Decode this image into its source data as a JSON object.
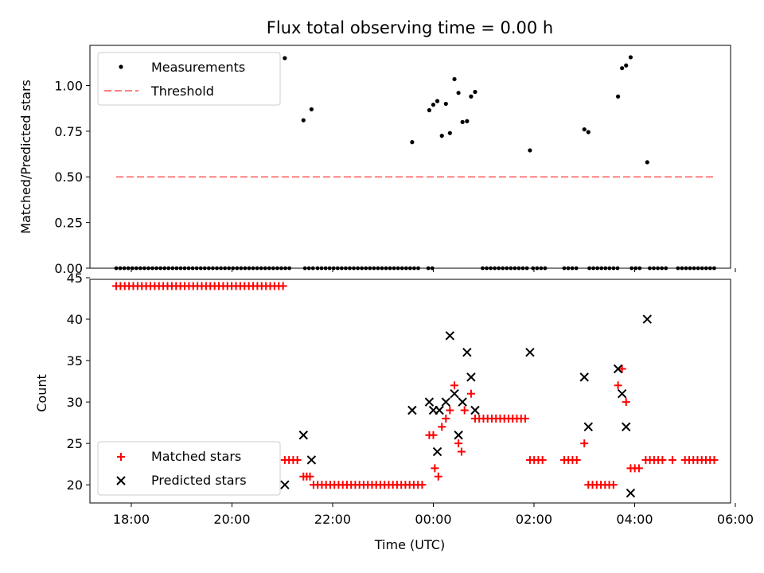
{
  "chart_data": [
    {
      "type": "scatter",
      "title": "Flux total observing time = 0.00 h",
      "xlabel": "",
      "ylabel": "Matched/Predicted stars",
      "xlim": [
        -6.3,
        5.7
      ],
      "ylim": [
        0,
        1.22
      ],
      "yticks": [
        {
          "v": 0.0,
          "label": "0.00"
        },
        {
          "v": 0.25,
          "label": "0.25"
        },
        {
          "v": 0.5,
          "label": "0.50"
        },
        {
          "v": 0.75,
          "label": "0.75"
        },
        {
          "v": 1.0,
          "label": "1.00"
        }
      ],
      "xticks": [
        -6,
        -4,
        -2,
        0,
        2,
        4,
        6
      ],
      "legend": {
        "position": "upper left",
        "entries": [
          "Measurements",
          "Threshold"
        ]
      },
      "series": [
        {
          "name": "Measurements",
          "color": "#000000",
          "marker": "dot",
          "zero_x": [
            -6.3,
            -6.22,
            -6.14,
            -6.06,
            -5.98,
            -5.9,
            -5.82,
            -5.74,
            -5.66,
            -5.58,
            -5.5,
            -5.42,
            -5.34,
            -5.26,
            -5.18,
            -5.1,
            -5.02,
            -4.94,
            -4.86,
            -4.78,
            -4.7,
            -4.62,
            -4.54,
            -4.46,
            -4.38,
            -4.3,
            -4.22,
            -4.14,
            -4.06,
            -3.98,
            -3.9,
            -3.82,
            -3.74,
            -3.66,
            -3.58,
            -3.5,
            -3.42,
            -3.34,
            -3.26,
            -3.18,
            -3.1,
            -3.02,
            -2.94,
            -2.86,
            -2.55,
            -2.47,
            -2.39,
            -2.3,
            -2.22,
            -2.14,
            -2.06,
            -1.98,
            -1.9,
            -1.82,
            -1.74,
            -1.66,
            -1.58,
            -1.5,
            -1.42,
            -1.34,
            -1.26,
            -1.18,
            -1.1,
            -1.02,
            -0.94,
            -0.86,
            -0.78,
            -0.7,
            -0.62,
            -0.54,
            -0.46,
            -0.38,
            -0.3,
            -0.1,
            -0.02,
            0.98,
            1.06,
            1.14,
            1.22,
            1.3,
            1.38,
            1.46,
            1.54,
            1.62,
            1.7,
            1.78,
            1.86,
            1.98,
            2.06,
            2.14,
            2.22,
            2.6,
            2.68,
            2.76,
            2.84,
            3.1,
            3.18,
            3.26,
            3.34,
            3.42,
            3.5,
            3.58,
            3.66,
            3.94,
            4.02,
            4.1,
            4.3,
            4.38,
            4.46,
            4.54,
            4.62,
            4.86,
            4.94,
            5.02,
            5.1,
            5.18,
            5.26,
            5.34,
            5.42,
            5.5,
            5.58
          ],
          "points": [
            {
              "x": -2.95,
              "y": 1.15
            },
            {
              "x": -2.58,
              "y": 0.81
            },
            {
              "x": -2.42,
              "y": 0.87
            },
            {
              "x": -0.42,
              "y": 0.69
            },
            {
              "x": -0.08,
              "y": 0.865
            },
            {
              "x": 0.0,
              "y": 0.895
            },
            {
              "x": 0.08,
              "y": 0.915
            },
            {
              "x": 0.17,
              "y": 0.725
            },
            {
              "x": 0.25,
              "y": 0.9
            },
            {
              "x": 0.33,
              "y": 0.74
            },
            {
              "x": 0.42,
              "y": 1.035
            },
            {
              "x": 0.5,
              "y": 0.96
            },
            {
              "x": 0.58,
              "y": 0.8
            },
            {
              "x": 0.67,
              "y": 0.805
            },
            {
              "x": 0.75,
              "y": 0.94
            },
            {
              "x": 0.83,
              "y": 0.965
            },
            {
              "x": 1.92,
              "y": 0.645
            },
            {
              "x": 3.0,
              "y": 0.76
            },
            {
              "x": 3.08,
              "y": 0.745
            },
            {
              "x": 3.67,
              "y": 0.94
            },
            {
              "x": 3.75,
              "y": 1.095
            },
            {
              "x": 3.83,
              "y": 1.11
            },
            {
              "x": 3.92,
              "y": 1.155
            },
            {
              "x": 4.25,
              "y": 0.58
            }
          ]
        },
        {
          "name": "Threshold",
          "color": "#ff8080",
          "style": "dashed",
          "x": [
            -6.3,
            5.6
          ],
          "y": [
            0.5,
            0.5
          ]
        }
      ]
    },
    {
      "type": "scatter",
      "title": "",
      "xlabel": "Time (UTC)",
      "ylabel": "Count",
      "xlim": [
        -6.3,
        5.7
      ],
      "ylim": [
        18,
        45
      ],
      "yticks": [
        {
          "v": 20,
          "label": "20"
        },
        {
          "v": 25,
          "label": "25"
        },
        {
          "v": 30,
          "label": "30"
        },
        {
          "v": 35,
          "label": "35"
        },
        {
          "v": 40,
          "label": "40"
        },
        {
          "v": 45,
          "label": "45"
        }
      ],
      "xticks": [
        {
          "v": -6,
          "label": "18:00"
        },
        {
          "v": -4,
          "label": "20:00"
        },
        {
          "v": -2,
          "label": "22:00"
        },
        {
          "v": 0,
          "label": "00:00"
        },
        {
          "v": 2,
          "label": "02:00"
        },
        {
          "v": 4,
          "label": "04:00"
        },
        {
          "v": 6,
          "label": "06:00"
        }
      ],
      "legend": {
        "position": "lower left",
        "entries": [
          "Matched stars",
          "Predicted stars"
        ]
      },
      "series": [
        {
          "name": "Matched stars",
          "color": "#ff0000",
          "marker": "plus",
          "runs": [
            {
              "x0": -6.3,
              "x1": -2.95,
              "step": 0.085,
              "y": 44
            },
            {
              "x0": -2.95,
              "x1": -2.62,
              "step": 0.083,
              "y": 23
            },
            {
              "x0": -2.58,
              "x1": -2.45,
              "step": 0.065,
              "y": 21
            },
            {
              "x0": -2.38,
              "x1": -0.2,
              "step": 0.083,
              "y": 20
            },
            {
              "x0": 0.83,
              "x1": 1.9,
              "step": 0.083,
              "y": 28
            },
            {
              "x0": 1.92,
              "x1": 2.25,
              "step": 0.083,
              "y": 23
            },
            {
              "x0": 2.6,
              "x1": 2.9,
              "step": 0.083,
              "y": 23
            },
            {
              "x0": 3.08,
              "x1": 3.6,
              "step": 0.083,
              "y": 20
            },
            {
              "x0": 3.92,
              "x1": 4.15,
              "step": 0.083,
              "y": 22
            },
            {
              "x0": 4.22,
              "x1": 4.6,
              "step": 0.083,
              "y": 23
            },
            {
              "x0": 4.75,
              "x1": 4.8,
              "step": 0.1,
              "y": 23
            },
            {
              "x0": 5.0,
              "x1": 5.6,
              "step": 0.083,
              "y": 23
            }
          ],
          "points": [
            {
              "x": -0.08,
              "y": 26
            },
            {
              "x": 0.0,
              "y": 26
            },
            {
              "x": 0.03,
              "y": 22
            },
            {
              "x": 0.1,
              "y": 21
            },
            {
              "x": 0.17,
              "y": 27
            },
            {
              "x": 0.25,
              "y": 28
            },
            {
              "x": 0.33,
              "y": 29
            },
            {
              "x": 0.42,
              "y": 32
            },
            {
              "x": 0.5,
              "y": 25
            },
            {
              "x": 0.56,
              "y": 24
            },
            {
              "x": 0.62,
              "y": 29
            },
            {
              "x": 0.75,
              "y": 31
            },
            {
              "x": 3.0,
              "y": 25
            },
            {
              "x": 3.67,
              "y": 32
            },
            {
              "x": 3.75,
              "y": 34
            },
            {
              "x": 3.83,
              "y": 30
            }
          ]
        },
        {
          "name": "Predicted stars",
          "color": "#000000",
          "marker": "x",
          "points": [
            {
              "x": -2.95,
              "y": 20
            },
            {
              "x": -2.58,
              "y": 26
            },
            {
              "x": -2.42,
              "y": 23
            },
            {
              "x": -0.42,
              "y": 29
            },
            {
              "x": -0.08,
              "y": 30
            },
            {
              "x": 0.0,
              "y": 29
            },
            {
              "x": 0.08,
              "y": 24
            },
            {
              "x": 0.12,
              "y": 29
            },
            {
              "x": 0.25,
              "y": 30
            },
            {
              "x": 0.33,
              "y": 38
            },
            {
              "x": 0.42,
              "y": 31
            },
            {
              "x": 0.5,
              "y": 26
            },
            {
              "x": 0.58,
              "y": 30
            },
            {
              "x": 0.67,
              "y": 36
            },
            {
              "x": 0.75,
              "y": 33
            },
            {
              "x": 0.83,
              "y": 29
            },
            {
              "x": 1.92,
              "y": 36
            },
            {
              "x": 3.0,
              "y": 33
            },
            {
              "x": 3.08,
              "y": 27
            },
            {
              "x": 3.67,
              "y": 34
            },
            {
              "x": 3.75,
              "y": 31
            },
            {
              "x": 3.83,
              "y": 27
            },
            {
              "x": 3.92,
              "y": 19
            },
            {
              "x": 4.25,
              "y": 40
            }
          ]
        }
      ]
    }
  ]
}
